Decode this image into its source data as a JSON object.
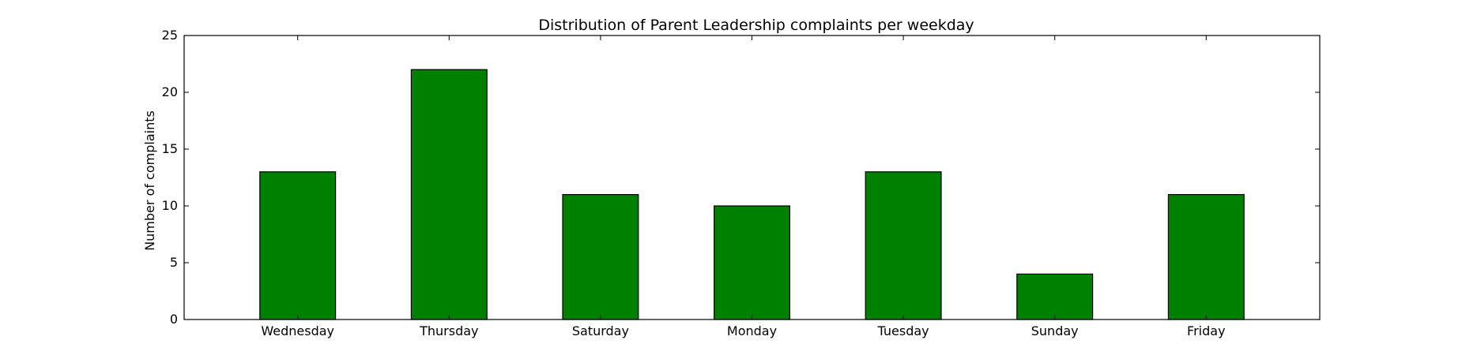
{
  "chart_data": {
    "type": "bar",
    "title": "Distribution of  Parent Leadership complaints per weekday",
    "xlabel": "",
    "ylabel": "Number of complaints",
    "categories": [
      "Wednesday",
      "Thursday",
      "Saturday",
      "Monday",
      "Tuesday",
      "Sunday",
      "Friday"
    ],
    "values": [
      13,
      22,
      11,
      10,
      13,
      4,
      11
    ],
    "ylim": [
      0,
      25
    ],
    "yticks": [
      0,
      5,
      10,
      15,
      20,
      25
    ],
    "bar_color": "#008000",
    "grid": false,
    "legend": "none"
  }
}
